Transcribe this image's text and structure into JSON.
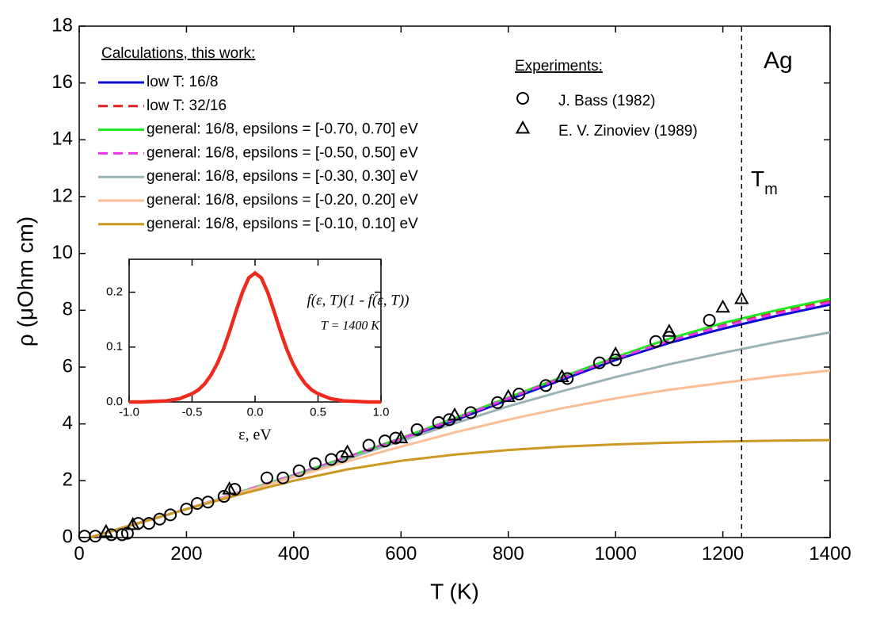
{
  "chart_data": [
    {
      "type": "line",
      "x_label": "T (K)",
      "y_label": "ρ (μOhm cm)",
      "xlim": [
        0,
        1400
      ],
      "ylim": [
        0,
        18
      ],
      "xticks": [
        0,
        200,
        400,
        600,
        800,
        1000,
        1200,
        1400
      ],
      "yticks": [
        0,
        2,
        4,
        6,
        8,
        10,
        12,
        14,
        16,
        18
      ],
      "legend_title": "Calculations, this work:",
      "experiments_title": "Experiments:",
      "element": "Ag",
      "melt_label": "T",
      "melt_sub": "m",
      "melt_T": 1235,
      "series": [
        {
          "name": "low T: 16/8",
          "color": "#0a0ad0",
          "x": [
            20,
            100,
            200,
            300,
            400,
            500,
            600,
            700,
            800,
            900,
            1000,
            1100,
            1200,
            1300,
            1400
          ],
          "values": [
            0,
            0.45,
            1.0,
            1.58,
            2.18,
            2.8,
            3.45,
            4.12,
            4.85,
            5.55,
            6.25,
            6.85,
            7.35,
            7.8,
            8.2
          ]
        },
        {
          "name": "low T: 32/16",
          "color": "#e0201b",
          "dash": true,
          "x": [
            20,
            100,
            200,
            300,
            400,
            500,
            600,
            700,
            800,
            900,
            1000,
            1100,
            1200,
            1300,
            1400
          ],
          "values": [
            0,
            0.45,
            1.0,
            1.6,
            2.2,
            2.83,
            3.48,
            4.17,
            4.9,
            5.62,
            6.32,
            6.95,
            7.5,
            7.95,
            8.35
          ]
        },
        {
          "name": "general: 16/8, epsilons = [-0.70, 0.70] eV",
          "color": "#22e622",
          "x": [
            20,
            100,
            200,
            300,
            400,
            500,
            600,
            700,
            800,
            900,
            1000,
            1100,
            1200,
            1300,
            1400
          ],
          "values": [
            0,
            0.45,
            1.0,
            1.6,
            2.2,
            2.84,
            3.5,
            4.2,
            4.93,
            5.65,
            6.35,
            7.0,
            7.55,
            8.0,
            8.4
          ]
        },
        {
          "name": "general: 16/8, epsilons = [-0.50, 0.50] eV",
          "color": "#ee33ee",
          "dash": true,
          "x": [
            20,
            100,
            200,
            300,
            400,
            500,
            600,
            700,
            800,
            900,
            1000,
            1100,
            1200,
            1300,
            1400
          ],
          "values": [
            0,
            0.45,
            1.0,
            1.6,
            2.2,
            2.83,
            3.48,
            4.17,
            4.9,
            5.62,
            6.3,
            6.92,
            7.45,
            7.88,
            8.28
          ]
        },
        {
          "name": "general: 16/8, epsilons = [-0.30, 0.30] eV",
          "color": "#99b2b5",
          "x": [
            20,
            100,
            200,
            300,
            400,
            500,
            600,
            700,
            800,
            900,
            1000,
            1100,
            1200,
            1300,
            1400
          ],
          "values": [
            0,
            0.45,
            1.0,
            1.58,
            2.17,
            2.77,
            3.4,
            4.02,
            4.62,
            5.15,
            5.65,
            6.1,
            6.5,
            6.88,
            7.22
          ]
        },
        {
          "name": "general: 16/8, epsilons = [-0.20, 0.20] eV",
          "color": "#f9be93",
          "x": [
            20,
            100,
            200,
            300,
            400,
            500,
            600,
            700,
            800,
            900,
            1000,
            1100,
            1200,
            1300,
            1400
          ],
          "values": [
            0,
            0.45,
            1.0,
            1.57,
            2.13,
            2.68,
            3.2,
            3.7,
            4.15,
            4.55,
            4.9,
            5.2,
            5.45,
            5.68,
            5.88
          ]
        },
        {
          "name": "general: 16/8, epsilons = [-0.10, 0.10] eV",
          "color": "#cc9922",
          "x": [
            20,
            100,
            200,
            300,
            400,
            500,
            600,
            700,
            800,
            900,
            1000,
            1100,
            1200,
            1300,
            1400
          ],
          "values": [
            0,
            0.45,
            1.0,
            1.52,
            2.0,
            2.4,
            2.7,
            2.92,
            3.08,
            3.2,
            3.28,
            3.34,
            3.38,
            3.41,
            3.43
          ]
        },
        {
          "name": "J. Bass (1982)",
          "color": "#000000",
          "marker": "circle",
          "x": [
            10,
            30,
            60,
            80,
            90,
            110,
            130,
            150,
            170,
            200,
            220,
            240,
            270,
            290,
            350,
            380,
            410,
            440,
            470,
            490,
            540,
            570,
            590,
            630,
            670,
            690,
            730,
            780,
            820,
            870,
            910,
            970,
            1000,
            1075,
            1100,
            1175
          ],
          "values": [
            0.05,
            0.05,
            0.1,
            0.1,
            0.15,
            0.5,
            0.5,
            0.65,
            0.8,
            1.0,
            1.2,
            1.25,
            1.45,
            1.7,
            2.1,
            2.1,
            2.35,
            2.6,
            2.75,
            2.85,
            3.25,
            3.4,
            3.5,
            3.8,
            4.05,
            4.15,
            4.4,
            4.75,
            5.05,
            5.35,
            5.6,
            6.15,
            6.25,
            6.9,
            7.05,
            7.65
          ]
        },
        {
          "name": "E. V. Zinoviev (1989)",
          "color": "#000000",
          "marker": "triangle",
          "x": [
            50,
            100,
            280,
            500,
            600,
            700,
            800,
            900,
            1000,
            1100,
            1200,
            1235
          ],
          "values": [
            0.2,
            0.45,
            1.7,
            3.0,
            3.5,
            4.3,
            4.95,
            5.65,
            6.45,
            7.25,
            8.1,
            8.4
          ]
        }
      ]
    },
    {
      "type": "line",
      "x_label": "ε, eV",
      "formula": "f(ε, T)(1 - f(ε, T))",
      "condition": "T = 1400 K",
      "xlim": [
        -1,
        1
      ],
      "ylim": [
        0,
        0.26
      ],
      "xticks": [
        {
          "value": -1,
          "label": "-1.0"
        },
        -0.5,
        {
          "value": 0,
          "label": "0.0"
        },
        0.5,
        {
          "value": 1,
          "label": "1.0"
        }
      ],
      "yticks": [
        {
          "value": 0,
          "label": "0.0"
        },
        0.1,
        0.2
      ],
      "series": [
        {
          "color": "#ee2a1e",
          "x": [
            -1,
            -0.9,
            -0.8,
            -0.7,
            -0.6,
            -0.5,
            -0.45,
            -0.4,
            -0.35,
            -0.3,
            -0.25,
            -0.2,
            -0.15,
            -0.1,
            -0.05,
            0,
            0.05,
            0.1,
            0.15,
            0.2,
            0.25,
            0.3,
            0.35,
            0.4,
            0.45,
            0.5,
            0.6,
            0.7,
            0.8,
            0.9,
            1
          ],
          "values": [
            0,
            0,
            0.001,
            0.002,
            0.006,
            0.015,
            0.022,
            0.033,
            0.049,
            0.07,
            0.097,
            0.13,
            0.166,
            0.2,
            0.226,
            0.235,
            0.226,
            0.2,
            0.166,
            0.13,
            0.097,
            0.07,
            0.049,
            0.033,
            0.022,
            0.015,
            0.006,
            0.002,
            0.001,
            0,
            0
          ]
        }
      ]
    }
  ]
}
